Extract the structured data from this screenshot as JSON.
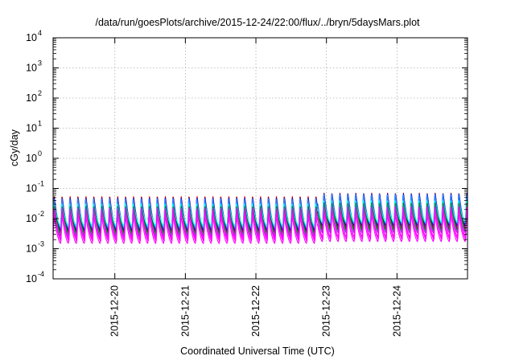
{
  "chart_data": {
    "type": "line",
    "title": "/data/run/goesPlots/archive/2015-12-24/22:00/flux/../bryn/5daysMars.plot",
    "xlabel": "Coordinated Universal Time (UTC)",
    "ylabel": "cGy/day",
    "yscale": "log",
    "ylim": [
      0.0001,
      10000
    ],
    "y_tick_exponents": [
      4,
      3,
      2,
      1,
      0,
      -1,
      -2,
      -3,
      -4
    ],
    "xlim": [
      "2015-12-19T03:00",
      "2015-12-25T00:00"
    ],
    "x_tick_labels": [
      "2015-12-20",
      "2015-12-21",
      "2015-12-22",
      "2015-12-23",
      "2015-12-24"
    ],
    "grid": true,
    "legend": "none",
    "oscillation_period_hours": 2.7,
    "baseline_shift_time": "2015-12-22T21:00",
    "series": [
      {
        "color": "#ff0000",
        "trough_value": 0.0036,
        "peak_value": 0.056,
        "late_factor": 1.3
      },
      {
        "color": "#8b0000",
        "trough_value": 0.0032,
        "peak_value": 0.052,
        "late_factor": 1.3
      },
      {
        "color": "#a020f0",
        "trough_value": 0.0026,
        "peak_value": 0.048,
        "late_factor": 1.3
      },
      {
        "color": "#0000cd",
        "trough_value": 0.004,
        "peak_value": 0.05,
        "late_factor": 1.4
      },
      {
        "color": "#1e90ff",
        "trough_value": 0.0048,
        "peak_value": 0.046,
        "late_factor": 1.4
      },
      {
        "color": "#00ffff",
        "trough_value": 0.0058,
        "peak_value": 0.032,
        "late_factor": 1.3
      },
      {
        "color": "#006400",
        "trough_value": 0.0034,
        "peak_value": 0.026,
        "late_factor": 1.3
      },
      {
        "color": "#2e8b57",
        "trough_value": 0.003,
        "peak_value": 0.024,
        "late_factor": 1.3
      },
      {
        "color": "#ff00ff",
        "trough_value": 0.0015,
        "peak_value": 0.014,
        "late_factor": 1.15
      },
      {
        "color": "#ff00ff",
        "trough_value": 0.0018,
        "peak_value": 0.018,
        "late_factor": 1.15
      },
      {
        "color": "#ff00ff",
        "trough_value": 0.0022,
        "peak_value": 0.022,
        "late_factor": 1.15
      }
    ]
  }
}
